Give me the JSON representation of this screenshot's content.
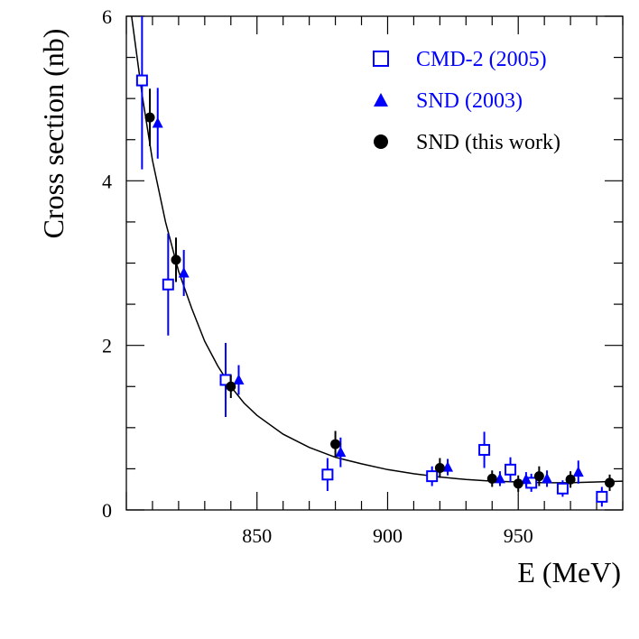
{
  "chart_data": {
    "type": "scatter",
    "title": "",
    "xlabel": "E (MeV)",
    "ylabel": "Cross section (nb)",
    "xlim": [
      800,
      990
    ],
    "ylim": [
      0,
      6
    ],
    "x_ticks": [
      850,
      900,
      950
    ],
    "y_ticks": [
      0,
      2,
      4,
      6
    ],
    "grid": false,
    "legend_position": "top-right",
    "series": [
      {
        "name": "CMD-2 (2005)",
        "marker": "open-square",
        "color": "#0000ff",
        "points": [
          {
            "x": 806,
            "y": 5.22,
            "err": 1.08
          },
          {
            "x": 816,
            "y": 2.74,
            "err": 0.62
          },
          {
            "x": 838,
            "y": 1.58,
            "err": 0.45
          },
          {
            "x": 877,
            "y": 0.43,
            "err": 0.2
          },
          {
            "x": 917,
            "y": 0.41,
            "err": 0.12
          },
          {
            "x": 937,
            "y": 0.73,
            "err": 0.22
          },
          {
            "x": 947,
            "y": 0.49,
            "err": 0.15
          },
          {
            "x": 955,
            "y": 0.33,
            "err": 0.11
          },
          {
            "x": 967,
            "y": 0.26,
            "err": 0.1
          },
          {
            "x": 982,
            "y": 0.16,
            "err": 0.12
          }
        ]
      },
      {
        "name": "SND (2003)",
        "marker": "filled-triangle",
        "color": "#0000ff",
        "points": [
          {
            "x": 812,
            "y": 4.7,
            "err": 0.43
          },
          {
            "x": 822,
            "y": 2.88,
            "err": 0.28
          },
          {
            "x": 843,
            "y": 1.58,
            "err": 0.18
          },
          {
            "x": 882,
            "y": 0.7,
            "err": 0.18
          },
          {
            "x": 923,
            "y": 0.52,
            "err": 0.1
          },
          {
            "x": 943,
            "y": 0.38,
            "err": 0.09
          },
          {
            "x": 953,
            "y": 0.37,
            "err": 0.09
          },
          {
            "x": 961,
            "y": 0.38,
            "err": 0.1
          },
          {
            "x": 973,
            "y": 0.46,
            "err": 0.14
          }
        ]
      },
      {
        "name": "SND (this work)",
        "marker": "filled-circle",
        "color": "#000000",
        "points": [
          {
            "x": 809,
            "y": 4.77,
            "err": 0.35
          },
          {
            "x": 819,
            "y": 3.04,
            "err": 0.27
          },
          {
            "x": 840,
            "y": 1.5,
            "err": 0.14
          },
          {
            "x": 880,
            "y": 0.8,
            "err": 0.16
          },
          {
            "x": 920,
            "y": 0.51,
            "err": 0.12
          },
          {
            "x": 940,
            "y": 0.38,
            "err": 0.1
          },
          {
            "x": 950,
            "y": 0.32,
            "err": 0.1
          },
          {
            "x": 958,
            "y": 0.41,
            "err": 0.12
          },
          {
            "x": 970,
            "y": 0.37,
            "err": 0.1
          },
          {
            "x": 985,
            "y": 0.33,
            "err": 0.1
          }
        ]
      }
    ],
    "fit_curve": {
      "name": "fit",
      "color": "#000000",
      "points": [
        [
          802,
          6.0
        ],
        [
          806,
          5.05
        ],
        [
          810,
          4.25
        ],
        [
          815,
          3.5
        ],
        [
          820,
          2.9
        ],
        [
          825,
          2.45
        ],
        [
          830,
          2.05
        ],
        [
          835,
          1.75
        ],
        [
          840,
          1.5
        ],
        [
          845,
          1.3
        ],
        [
          850,
          1.15
        ],
        [
          860,
          0.92
        ],
        [
          870,
          0.76
        ],
        [
          880,
          0.64
        ],
        [
          890,
          0.56
        ],
        [
          900,
          0.49
        ],
        [
          910,
          0.44
        ],
        [
          920,
          0.4
        ],
        [
          930,
          0.37
        ],
        [
          940,
          0.35
        ],
        [
          950,
          0.34
        ],
        [
          960,
          0.33
        ],
        [
          970,
          0.33
        ],
        [
          980,
          0.34
        ],
        [
          990,
          0.35
        ]
      ]
    }
  }
}
